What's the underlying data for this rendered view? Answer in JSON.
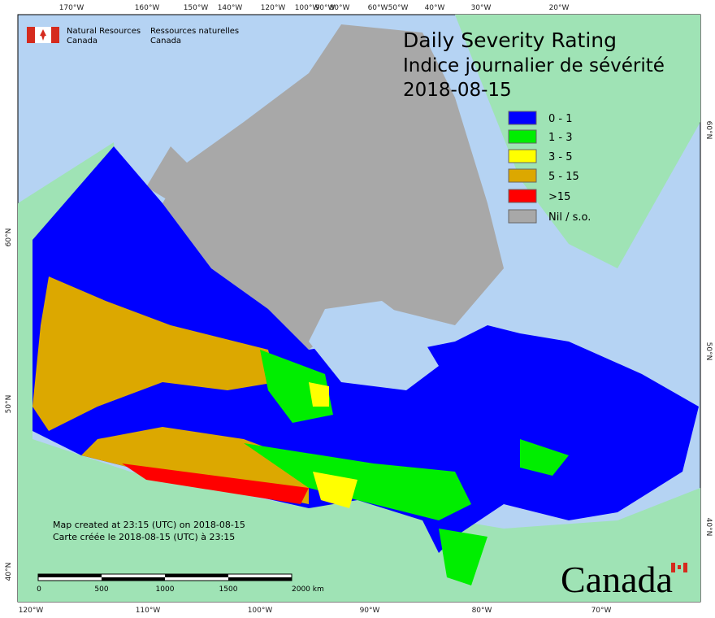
{
  "agency": {
    "english": [
      "Natural Resources",
      "Canada"
    ],
    "french": [
      "Ressources naturelles",
      "Canada"
    ]
  },
  "title": {
    "english": "Daily Severity Rating",
    "french": "Indice journalier de sévérité",
    "date": "2018-08-15"
  },
  "legend": [
    {
      "label": "0 - 1",
      "color": "#0000ff"
    },
    {
      "label": "1 - 3",
      "color": "#00ee00"
    },
    {
      "label": "3 - 5",
      "color": "#ffff00"
    },
    {
      "label": "5 - 15",
      "color": "#dca800"
    },
    {
      "label": ">15",
      "color": "#ff0000"
    },
    {
      "label": "Nil / s.o.",
      "color": "#a8a8a8"
    }
  ],
  "graticule": {
    "top": [
      "170°W",
      "160°W",
      "150°W",
      "140°W",
      "120°W",
      "100°W",
      "90°W",
      "80°W",
      "60°W",
      "50°W",
      "40°W",
      "30°W",
      "20°W"
    ],
    "bottom": [
      "120°W",
      "110°W",
      "100°W",
      "90°W",
      "80°W",
      "70°W"
    ],
    "left": [
      "60°N",
      "50°N",
      "40°N"
    ],
    "right": [
      "60°N",
      "50°N",
      "40°N"
    ]
  },
  "notes": [
    "Map created at 23:15 (UTC) on 2018-08-15",
    "Carte créée le 2018-08-15 (UTC) à 23:15"
  ],
  "scale_bar": [
    "0",
    "500",
    "1000",
    "1500",
    "2000 km"
  ],
  "wordmark": "Canada"
}
